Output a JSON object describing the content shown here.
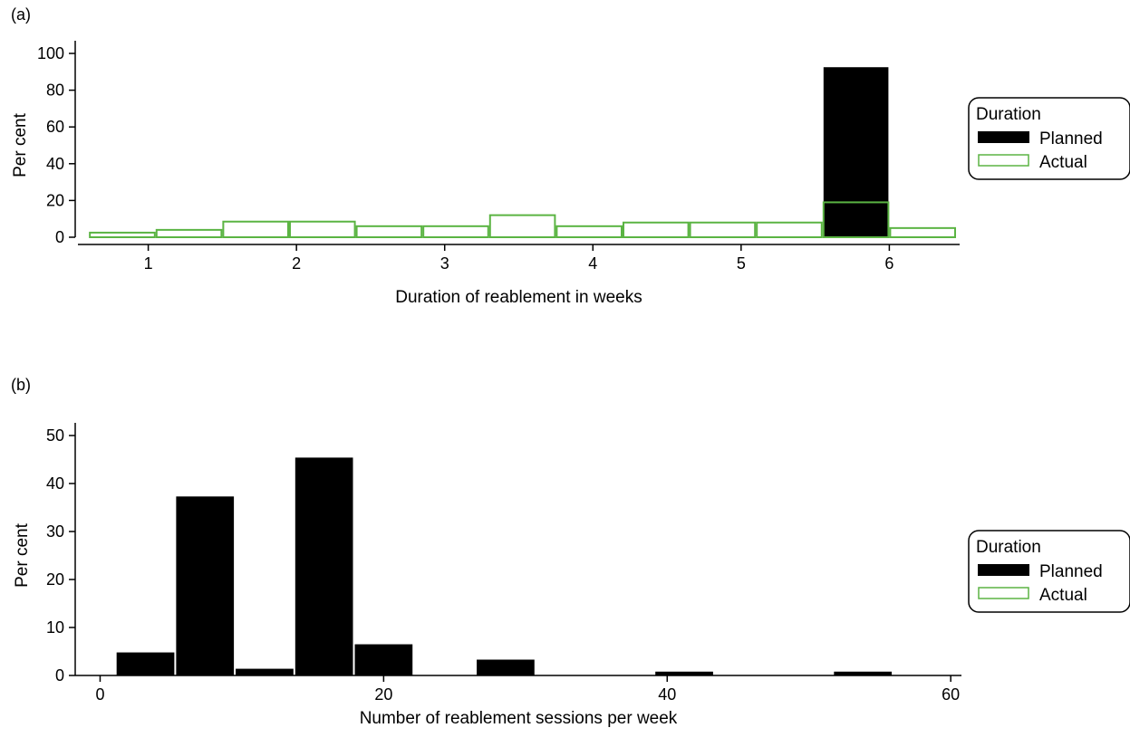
{
  "colors": {
    "planned": "#000000",
    "actual": "#5bb443",
    "axis": "#000000"
  },
  "chart_data": [
    {
      "type": "bar",
      "panel_label": "(a)",
      "xlabel": "Duration of reablement in weeks",
      "ylabel": "Per cent",
      "xlim": [
        0.55,
        6.45
      ],
      "ylim": [
        0,
        100
      ],
      "xticks": [
        1,
        2,
        3,
        4,
        5,
        6
      ],
      "yticks": [
        0,
        20,
        40,
        60,
        80,
        100
      ],
      "legend": {
        "title": "Duration",
        "position": "right",
        "entries": [
          "Planned",
          "Actual"
        ]
      },
      "series": [
        {
          "name": "Planned",
          "bins": [
            {
              "x0": 5.55,
              "x1": 6.0,
              "value": 92.5
            }
          ]
        },
        {
          "name": "Actual",
          "bins": [
            {
              "x0": 0.6,
              "x1": 1.05,
              "value": 2.5
            },
            {
              "x0": 1.05,
              "x1": 1.5,
              "value": 4
            },
            {
              "x0": 1.5,
              "x1": 1.95,
              "value": 8.5
            },
            {
              "x0": 1.95,
              "x1": 2.4,
              "value": 8.5
            },
            {
              "x0": 2.4,
              "x1": 2.85,
              "value": 6
            },
            {
              "x0": 2.85,
              "x1": 3.3,
              "value": 6
            },
            {
              "x0": 3.3,
              "x1": 3.75,
              "value": 12
            },
            {
              "x0": 3.75,
              "x1": 4.2,
              "value": 6
            },
            {
              "x0": 4.2,
              "x1": 4.65,
              "value": 8
            },
            {
              "x0": 4.65,
              "x1": 5.1,
              "value": 8
            },
            {
              "x0": 5.1,
              "x1": 5.55,
              "value": 8
            },
            {
              "x0": 5.55,
              "x1": 6.0,
              "value": 19
            },
            {
              "x0": 6.0,
              "x1": 6.45,
              "value": 5
            }
          ]
        }
      ]
    },
    {
      "type": "bar",
      "panel_label": "(b)",
      "xlabel": "Number of reablement sessions per week",
      "ylabel": "Per cent",
      "xlim": [
        -1.5,
        60.5
      ],
      "ylim": [
        0,
        50
      ],
      "xticks": [
        0,
        20,
        40,
        60
      ],
      "yticks": [
        0,
        10,
        20,
        30,
        40,
        50
      ],
      "legend": {
        "title": "Duration",
        "position": "right",
        "entries": [
          "Planned",
          "Actual"
        ]
      },
      "series": [
        {
          "name": "Planned",
          "bins": [
            {
              "x0": 1.1,
              "x1": 5.3,
              "value": 4.8
            },
            {
              "x0": 5.3,
              "x1": 9.5,
              "value": 37.3
            },
            {
              "x0": 9.5,
              "x1": 13.7,
              "value": 1.4
            },
            {
              "x0": 13.7,
              "x1": 17.9,
              "value": 45.4
            },
            {
              "x0": 17.9,
              "x1": 22.1,
              "value": 6.5
            },
            {
              "x0": 26.5,
              "x1": 30.7,
              "value": 3.3
            },
            {
              "x0": 39.1,
              "x1": 43.3,
              "value": 0.8
            },
            {
              "x0": 51.7,
              "x1": 55.9,
              "value": 0.8
            }
          ]
        },
        {
          "name": "Actual",
          "bins": []
        }
      ]
    }
  ]
}
